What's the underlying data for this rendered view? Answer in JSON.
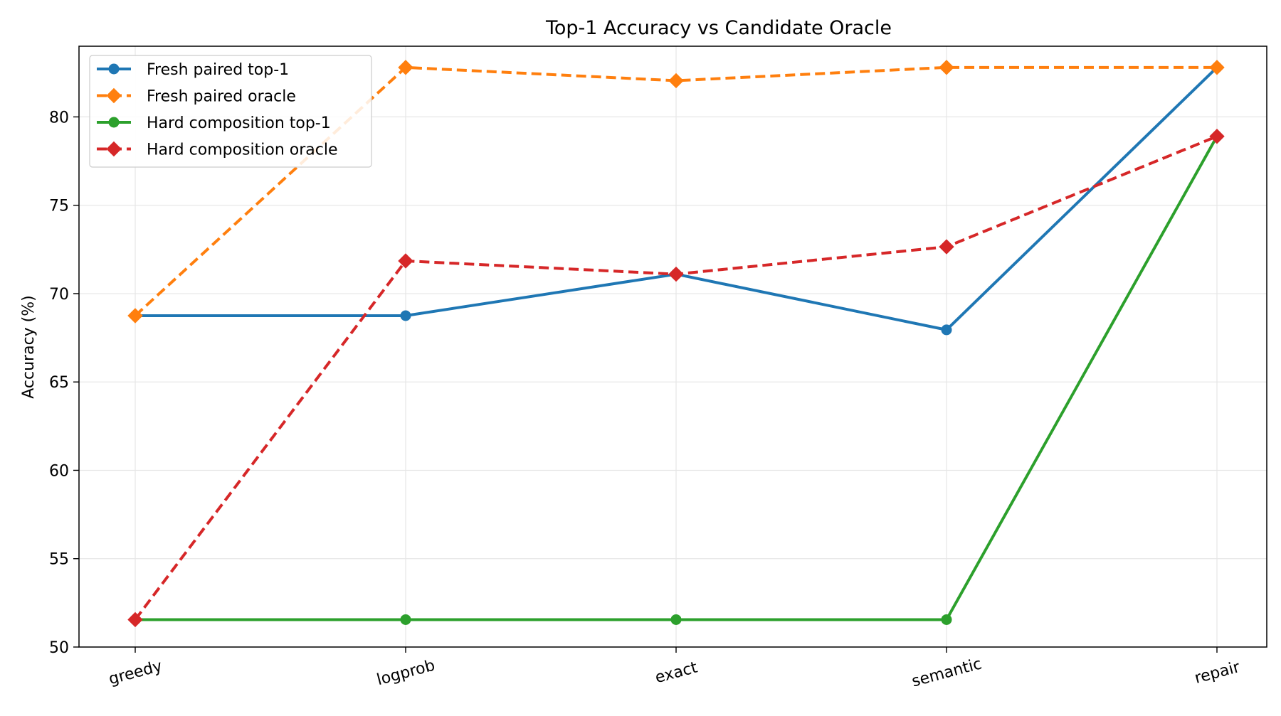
{
  "chart_data": {
    "type": "line",
    "title": "Top-1 Accuracy vs Candidate Oracle",
    "xlabel": "",
    "ylabel": "Accuracy (%)",
    "categories": [
      "greedy",
      "logprob",
      "exact",
      "semantic",
      "repair"
    ],
    "ylim": [
      50,
      84
    ],
    "yticks": [
      50,
      55,
      60,
      65,
      70,
      75,
      80
    ],
    "grid": true,
    "legend_position": "upper left",
    "series": [
      {
        "name": "Fresh paired top-1",
        "values": [
          68.75,
          68.75,
          71.1,
          67.95,
          82.8
        ],
        "color": "#1f77b4",
        "style": "solid",
        "marker": "circle"
      },
      {
        "name": "Fresh paired oracle",
        "values": [
          68.75,
          82.8,
          82.05,
          82.8,
          82.8
        ],
        "color": "#ff7f0e",
        "style": "dashed",
        "marker": "diamond"
      },
      {
        "name": "Hard composition top-1",
        "values": [
          51.55,
          51.55,
          51.55,
          51.55,
          78.9
        ],
        "color": "#2ca02c",
        "style": "solid",
        "marker": "circle"
      },
      {
        "name": "Hard composition oracle",
        "values": [
          51.55,
          71.85,
          71.1,
          72.65,
          78.9
        ],
        "color": "#d62728",
        "style": "dashed",
        "marker": "diamond"
      }
    ]
  }
}
